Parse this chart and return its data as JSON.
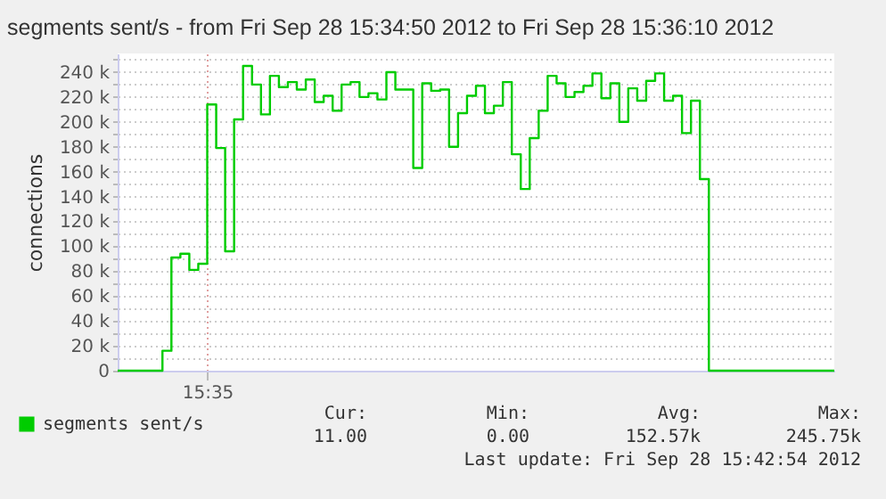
{
  "chart_data": {
    "type": "step",
    "title": "segments sent/s - from Fri Sep 28 15:34:50 2012 to Fri Sep 28 15:36:10 2012",
    "ylabel": "connections",
    "categories": [
      null,
      null,
      null,
      null,
      null,
      null,
      null,
      null,
      null,
      null,
      "15:35",
      null,
      null,
      null,
      null,
      null,
      null,
      null,
      null,
      null,
      null,
      null,
      null,
      null,
      null,
      null,
      null,
      null,
      null,
      null,
      null,
      null,
      null,
      null,
      null,
      null,
      null,
      null,
      null,
      null,
      null,
      null,
      null,
      null,
      null,
      null,
      null,
      null,
      null,
      null,
      null,
      null,
      null,
      null,
      null,
      null,
      null,
      null,
      null,
      null,
      null,
      null,
      null,
      null,
      null,
      null,
      null,
      null,
      null,
      null,
      null,
      null,
      null,
      null,
      null,
      null,
      null,
      null,
      null,
      null,
      null
    ],
    "series": [
      {
        "name": "segments sent/s",
        "color": "#00cc00",
        "values": [
          0,
          0,
          0,
          0,
          0,
          16000,
          91000,
          94000,
          81000,
          86000,
          214000,
          179000,
          96000,
          202000,
          245000,
          230000,
          206000,
          237000,
          228000,
          232000,
          226000,
          234000,
          216000,
          221000,
          209000,
          230000,
          232000,
          220000,
          223000,
          218000,
          240000,
          226000,
          226000,
          163000,
          231000,
          225000,
          226000,
          180000,
          207000,
          221000,
          229000,
          207000,
          213000,
          232000,
          174000,
          146000,
          187000,
          209000,
          237000,
          231000,
          220000,
          224000,
          229000,
          239000,
          219000,
          231000,
          200000,
          227000,
          217000,
          233000,
          239000,
          217000,
          221000,
          191000,
          217000,
          154000,
          0,
          0,
          0,
          0,
          0,
          0,
          0,
          0,
          0,
          0,
          0,
          0,
          0,
          0,
          0
        ]
      }
    ],
    "ylim": [
      0,
      255000
    ],
    "yticks": [
      {
        "value": 0,
        "label": "0"
      },
      {
        "value": 10000,
        "label": null
      },
      {
        "value": 20000,
        "label": "20 k"
      },
      {
        "value": 30000,
        "label": null
      },
      {
        "value": 40000,
        "label": "40 k"
      },
      {
        "value": 50000,
        "label": null
      },
      {
        "value": 60000,
        "label": "60 k"
      },
      {
        "value": 70000,
        "label": null
      },
      {
        "value": 80000,
        "label": "80 k"
      },
      {
        "value": 90000,
        "label": null
      },
      {
        "value": 100000,
        "label": "100 k"
      },
      {
        "value": 110000,
        "label": null
      },
      {
        "value": 120000,
        "label": "120 k"
      },
      {
        "value": 130000,
        "label": null
      },
      {
        "value": 140000,
        "label": "140 k"
      },
      {
        "value": 150000,
        "label": null
      },
      {
        "value": 160000,
        "label": "160 k"
      },
      {
        "value": 170000,
        "label": null
      },
      {
        "value": 180000,
        "label": "180 k"
      },
      {
        "value": 190000,
        "label": null
      },
      {
        "value": 200000,
        "label": "200 k"
      },
      {
        "value": 210000,
        "label": null
      },
      {
        "value": 220000,
        "label": "220 k"
      },
      {
        "value": 230000,
        "label": null
      },
      {
        "value": 240000,
        "label": "240 k"
      },
      {
        "value": 250000,
        "label": null
      }
    ],
    "grid": true,
    "legend": "bottom left",
    "annotations": [
      "Cur:",
      "11.00",
      "Min:",
      "0.00",
      "Avg:",
      "152.57k",
      "Max:",
      "245.75k",
      "Last update: Fri Sep 28 15:42:54 2012"
    ]
  }
}
